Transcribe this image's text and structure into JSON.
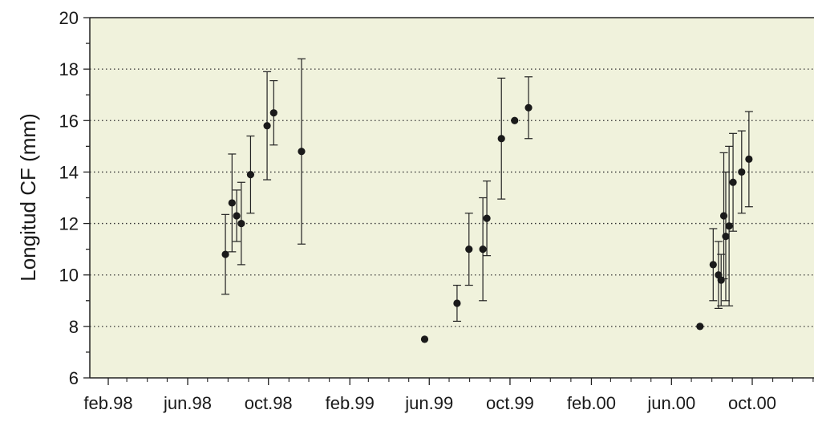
{
  "chart_data": {
    "type": "scatter",
    "ylabel": "Longitud CF (mm)",
    "xlabel": "",
    "ylim": [
      6,
      20
    ],
    "yticks": [
      6,
      8,
      10,
      12,
      14,
      16,
      18,
      20
    ],
    "xlim": [
      "1998-01-01",
      "2000-12-01"
    ],
    "xticks": [
      {
        "label": "feb.98",
        "date": "1998-02-01"
      },
      {
        "label": "jun.98",
        "date": "1998-06-01"
      },
      {
        "label": "oct.98",
        "date": "1998-10-01"
      },
      {
        "label": "feb.99",
        "date": "1999-02-01"
      },
      {
        "label": "jun.99",
        "date": "1999-06-01"
      },
      {
        "label": "oct.99",
        "date": "1999-10-01"
      },
      {
        "label": "feb.00",
        "date": "2000-02-01"
      },
      {
        "label": "jun.00",
        "date": "2000-06-01"
      },
      {
        "label": "oct.00",
        "date": "2000-10-01"
      }
    ],
    "grid": "horizontal-dotted",
    "plot_background": "#f0f2dc",
    "marker_color": "#1a1a1a",
    "points": [
      {
        "x": "1998-07-28",
        "y": 10.8,
        "low": 9.25,
        "high": 12.35
      },
      {
        "x": "1998-08-07",
        "y": 12.8,
        "low": 10.9,
        "high": 14.7
      },
      {
        "x": "1998-08-14",
        "y": 12.3,
        "low": 11.3,
        "high": 13.3
      },
      {
        "x": "1998-08-21",
        "y": 12.0,
        "low": 10.4,
        "high": 13.6
      },
      {
        "x": "1998-09-04",
        "y": 13.9,
        "low": 12.4,
        "high": 15.4
      },
      {
        "x": "1998-09-29",
        "y": 15.8,
        "low": 13.7,
        "high": 17.9
      },
      {
        "x": "1998-10-09",
        "y": 16.3,
        "low": 15.05,
        "high": 17.55
      },
      {
        "x": "1998-11-20",
        "y": 14.8,
        "low": 11.2,
        "high": 18.4
      },
      {
        "x": "1999-05-25",
        "y": 7.5
      },
      {
        "x": "1999-07-13",
        "y": 8.9,
        "low": 8.2,
        "high": 9.6
      },
      {
        "x": "1999-07-31",
        "y": 11.0,
        "low": 9.6,
        "high": 12.4
      },
      {
        "x": "1999-08-21",
        "y": 11.0,
        "low": 9.0,
        "high": 13.0
      },
      {
        "x": "1999-08-27",
        "y": 12.2,
        "low": 10.75,
        "high": 13.65
      },
      {
        "x": "1999-09-18",
        "y": 15.3,
        "low": 12.95,
        "high": 17.65
      },
      {
        "x": "1999-10-08",
        "y": 16.0
      },
      {
        "x": "1999-10-29",
        "y": 16.5,
        "low": 15.3,
        "high": 17.7
      },
      {
        "x": "2000-07-14",
        "y": 8.0
      },
      {
        "x": "2000-08-03",
        "y": 10.4,
        "low": 9.0,
        "high": 11.8
      },
      {
        "x": "2000-08-11",
        "y": 10.0,
        "low": 8.7,
        "high": 11.3
      },
      {
        "x": "2000-08-15",
        "y": 9.8,
        "low": 8.8,
        "high": 10.8
      },
      {
        "x": "2000-08-19",
        "y": 12.3,
        "low": 9.85,
        "high": 14.75
      },
      {
        "x": "2000-08-22",
        "y": 11.5,
        "low": 9.0,
        "high": 14.0
      },
      {
        "x": "2000-08-27",
        "y": 11.9,
        "low": 8.8,
        "high": 15.0
      },
      {
        "x": "2000-09-02",
        "y": 13.6,
        "low": 11.7,
        "high": 15.5
      },
      {
        "x": "2000-09-15",
        "y": 14.0,
        "low": 12.4,
        "high": 15.6
      },
      {
        "x": "2000-09-26",
        "y": 14.5,
        "low": 12.65,
        "high": 16.35
      }
    ]
  }
}
